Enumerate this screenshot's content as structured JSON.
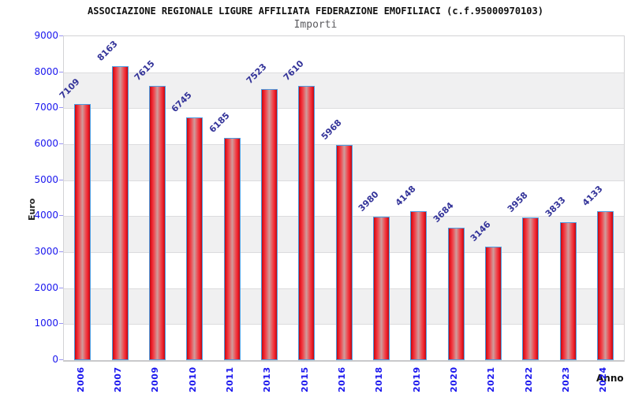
{
  "title": "ASSOCIAZIONE REGIONALE LIGURE AFFILIATA FEDERAZIONE EMOFILIACI (c.f.95000970103)",
  "subtitle": "Importi",
  "y_axis": {
    "label": "Euro",
    "ticks": [
      9000,
      8000,
      7000,
      6000,
      5000,
      4000,
      3000,
      2000,
      1000,
      0
    ]
  },
  "x_axis": {
    "label": "Anno"
  },
  "chart_data": {
    "type": "bar",
    "categories": [
      "2006",
      "2007",
      "2009",
      "2010",
      "2011",
      "2013",
      "2015",
      "2016",
      "2018",
      "2019",
      "2020",
      "2021",
      "2022",
      "2023",
      "2024"
    ],
    "values": [
      7109,
      8163,
      7615,
      6745,
      6185,
      7523,
      7610,
      5968,
      3980,
      4148,
      3684,
      3146,
      3958,
      3833,
      4133
    ],
    "title": "ASSOCIAZIONE REGIONALE LIGURE AFFILIATA FEDERAZIONE EMOFILIACI (c.f.95000970103)",
    "subtitle": "Importi",
    "xlabel": "Anno",
    "ylabel": "Euro",
    "ylim": [
      0,
      9000
    ],
    "grid": "horizontal-bands-every-1000",
    "legend": "none",
    "colors": {
      "bar_fill_edge": "#b80d12",
      "bar_fill_bright": "#ed1c28",
      "bar_fill_mid": "#ee4a50",
      "bar_fill_center": "#cf9d9d",
      "bar_border": "#4d9de2",
      "axis_tick_text": "#1a16ee",
      "value_label": "#333399",
      "band_white": "#ffffff",
      "band_gray": "#f0f0f1"
    }
  }
}
